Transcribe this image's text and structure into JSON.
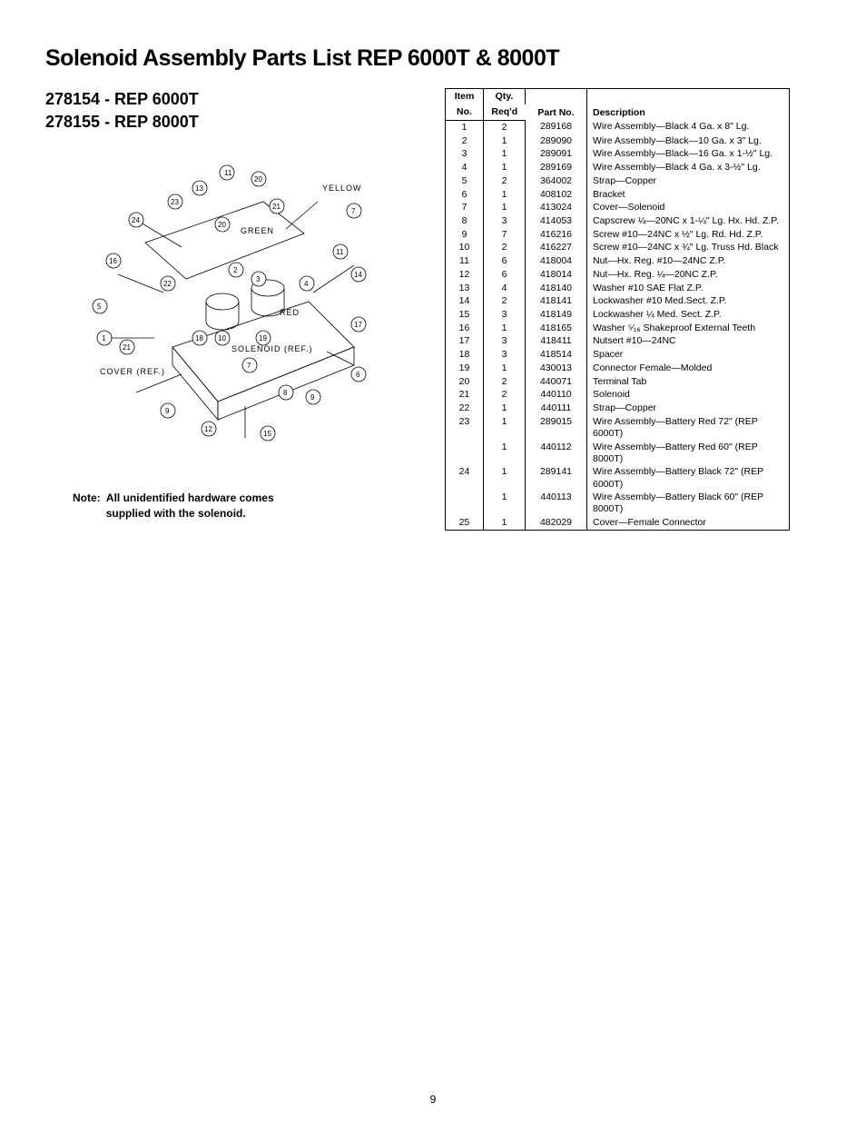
{
  "title": "Solenoid Assembly Parts List REP 6000T & 8000T",
  "subtitle_line1": "278154 - REP 6000T",
  "subtitle_line2": "278155 - REP 8000T",
  "note_label": "Note:",
  "note_text1": "All unidentified hardware comes",
  "note_text2": "supplied with the solenoid.",
  "diagram": {
    "labels": {
      "yellow": "YELLOW",
      "green": "GREEN",
      "red": "RED",
      "solenoid": "SOLENOID   (REF.)",
      "cover": "COVER   (REF.)"
    },
    "callouts": [
      "1",
      "2",
      "3",
      "4",
      "5",
      "6",
      "7",
      "8",
      "9",
      "10",
      "11",
      "12",
      "13",
      "14",
      "15",
      "16",
      "17",
      "18",
      "19",
      "20",
      "21",
      "22",
      "23",
      "24"
    ]
  },
  "table": {
    "headers": {
      "item_top": "Item",
      "item_bot": "No.",
      "qty_top": "Qty.",
      "qty_bot": "Req'd",
      "part": "Part No.",
      "desc": "Description"
    },
    "rows": [
      {
        "item": "1",
        "qty": "2",
        "part": "289168",
        "desc": "Wire Assembly—Black 4 Ga. x 8\" Lg."
      },
      {
        "item": "2",
        "qty": "1",
        "part": "289090",
        "desc": "Wire Assembly—Black—10 Ga. x 3\" Lg."
      },
      {
        "item": "3",
        "qty": "1",
        "part": "289091",
        "desc": "Wire Assembly—Black—16 Ga. x 1-½\" Lg."
      },
      {
        "item": "4",
        "qty": "1",
        "part": "289169",
        "desc": "Wire Assembly—Black 4 Ga. x 3-½\" Lg."
      },
      {
        "item": "5",
        "qty": "2",
        "part": "364002",
        "desc": "Strap—Copper"
      },
      {
        "item": "6",
        "qty": "1",
        "part": "408102",
        "desc": "Bracket"
      },
      {
        "item": "7",
        "qty": "1",
        "part": "413024",
        "desc": "Cover—Solenoid"
      },
      {
        "item": "8",
        "qty": "3",
        "part": "414053",
        "desc": "Capscrew ¼—20NC x 1-¼\" Lg. Hx. Hd. Z.P."
      },
      {
        "item": "9",
        "qty": "7",
        "part": "416216",
        "desc": "Screw #10—24NC x ½\" Lg. Rd. Hd. Z.P."
      },
      {
        "item": "10",
        "qty": "2",
        "part": "416227",
        "desc": "Screw #10—24NC x ¾\" Lg. Truss Hd. Black"
      },
      {
        "item": "11",
        "qty": "6",
        "part": "418004",
        "desc": "Nut—Hx. Reg. #10—24NC Z.P."
      },
      {
        "item": "12",
        "qty": "6",
        "part": "418014",
        "desc": "Nut—Hx. Reg. ¼—20NC Z.P."
      },
      {
        "item": "13",
        "qty": "4",
        "part": "418140",
        "desc": "Washer #10 SAE Flat Z.P."
      },
      {
        "item": "14",
        "qty": "2",
        "part": "418141",
        "desc": "Lockwasher #10 Med.Sect. Z.P."
      },
      {
        "item": "15",
        "qty": "3",
        "part": "418149",
        "desc": "Lockwasher ¼ Med. Sect. Z.P."
      },
      {
        "item": "16",
        "qty": "1",
        "part": "418165",
        "desc": "Washer ⁵⁄₁₆ Shakeproof External Teeth"
      },
      {
        "item": "17",
        "qty": "3",
        "part": "418411",
        "desc": "Nutsert #10—24NC"
      },
      {
        "item": "18",
        "qty": "3",
        "part": "418514",
        "desc": "Spacer"
      },
      {
        "item": "19",
        "qty": "1",
        "part": "430013",
        "desc": "Connector Female—Molded"
      },
      {
        "item": "20",
        "qty": "2",
        "part": "440071",
        "desc": "Terminal Tab"
      },
      {
        "item": "21",
        "qty": "2",
        "part": "440110",
        "desc": "Solenoid"
      },
      {
        "item": "22",
        "qty": "1",
        "part": "440111",
        "desc": "Strap—Copper"
      },
      {
        "item": "23",
        "qty": "1",
        "part": "289015",
        "desc": "Wire Assembly—Battery Red 72\" (REP 6000T)"
      },
      {
        "item": "",
        "qty": "1",
        "part": "440112",
        "desc": "Wire Assembly—Battery Red 60\" (REP 8000T)"
      },
      {
        "item": "24",
        "qty": "1",
        "part": "289141",
        "desc": "Wire Assembly—Battery Black 72\" (REP 6000T)"
      },
      {
        "item": "",
        "qty": "1",
        "part": "440113",
        "desc": "Wire Assembly—Battery Black 60\" (REP 8000T)"
      },
      {
        "item": "25",
        "qty": "1",
        "part": "482029",
        "desc": "Cover—Female Connector"
      }
    ]
  },
  "page_number": "9"
}
